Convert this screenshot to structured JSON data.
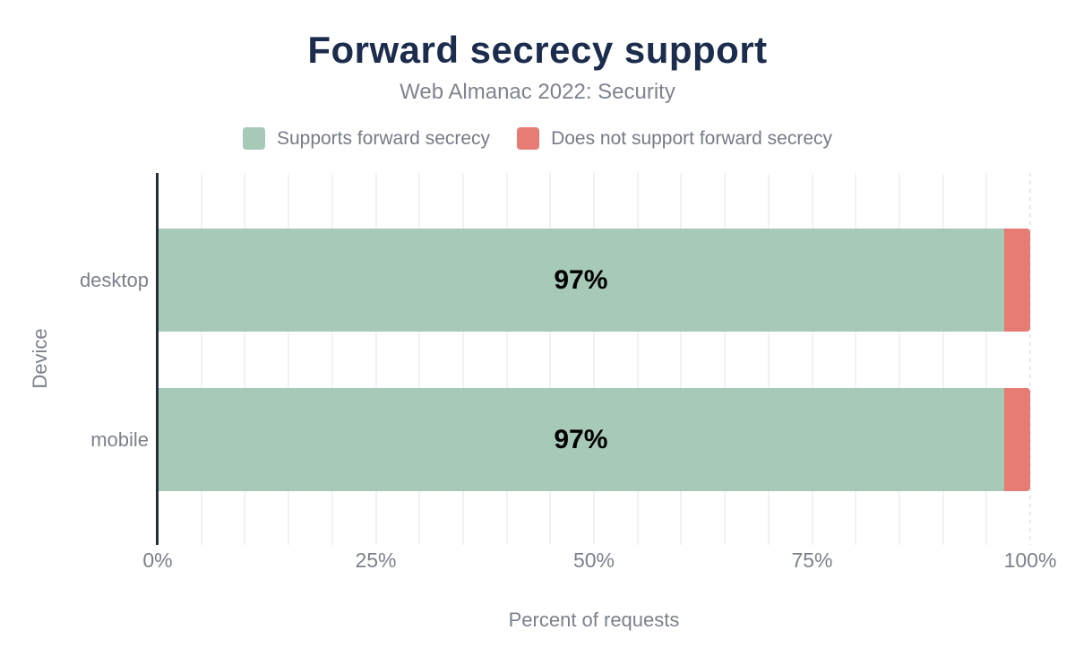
{
  "chart_data": {
    "type": "bar",
    "orientation": "horizontal",
    "stacked": true,
    "title": "Forward secrecy support",
    "subtitle": "Web Almanac 2022: Security",
    "categories": [
      "desktop",
      "mobile"
    ],
    "series": [
      {
        "name": "Supports forward secrecy",
        "values": [
          97,
          97
        ],
        "color": "#a7c9b7"
      },
      {
        "name": "Does not support forward secrecy",
        "values": [
          3,
          3
        ],
        "color": "#e67c73"
      }
    ],
    "bar_labels": [
      "97%",
      "97%"
    ],
    "xlabel": "Percent of requests",
    "ylabel": "Device",
    "xlim": [
      0,
      100
    ],
    "x_ticks": [
      {
        "value": 0,
        "label": "0%"
      },
      {
        "value": 25,
        "label": "25%"
      },
      {
        "value": 50,
        "label": "50%"
      },
      {
        "value": 75,
        "label": "75%"
      },
      {
        "value": 100,
        "label": "100%"
      }
    ],
    "gridline_step_pct": 5,
    "grid": true,
    "legend_position": "top"
  },
  "colors": {
    "title": "#1b2c4c",
    "muted_text": "#7b818b",
    "axis_line": "#262d38",
    "gridline": "#f2f2f5",
    "bar_value_text": "#000000"
  }
}
